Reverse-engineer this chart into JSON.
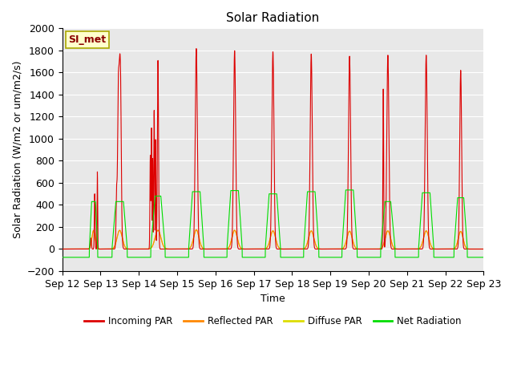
{
  "title": "Solar Radiation",
  "ylabel": "Solar Radiation (W/m2 or um/m2/s)",
  "xlabel": "Time",
  "annotation": "SI_met",
  "ylim": [
    -200,
    2000
  ],
  "yticks": [
    -200,
    0,
    200,
    400,
    600,
    800,
    1000,
    1200,
    1400,
    1600,
    1800,
    2000
  ],
  "xtick_labels": [
    "Sep 12",
    "Sep 13",
    "Sep 14",
    "Sep 15",
    "Sep 16",
    "Sep 17",
    "Sep 18",
    "Sep 19",
    "Sep 20",
    "Sep 21",
    "Sep 22",
    "Sep 23"
  ],
  "plot_bg_color": "#e8e8e8",
  "fig_bg_color": "#ffffff",
  "grid_color": "#ffffff",
  "colors": {
    "incoming": "#dd0000",
    "reflected": "#ff8800",
    "diffuse": "#dddd00",
    "net": "#00dd00"
  },
  "legend_labels": [
    "Incoming PAR",
    "Reflected PAR",
    "Diffuse PAR",
    "Net Radiation"
  ],
  "n_days": 11,
  "pts_per_day": 288,
  "title_fontsize": 11,
  "axis_fontsize": 9,
  "tick_fontsize": 9
}
